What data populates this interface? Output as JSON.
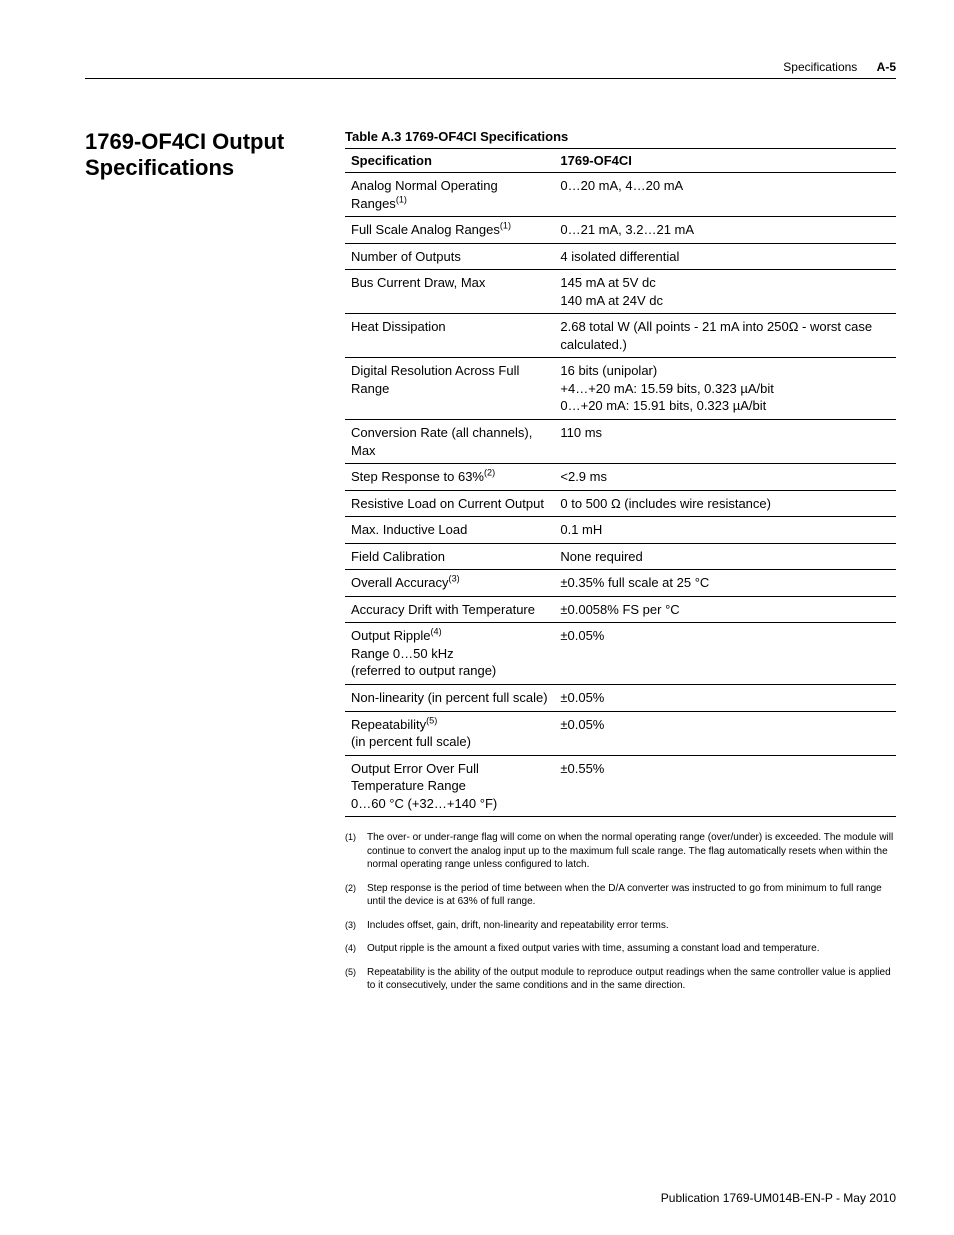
{
  "header": {
    "section": "Specifications",
    "page": "A-5"
  },
  "section_title_line1": "1769-OF4CI Output",
  "section_title_line2": "Specifications",
  "table_caption": "Table A.3 1769-OF4CI Specifications",
  "columns": {
    "spec": "Specification",
    "val": "1769-OF4CI"
  },
  "rows": [
    {
      "spec_html": "Analog Normal Operating Ranges<sup>(1)</sup>",
      "val": "0…20 mA, 4…20 mA"
    },
    {
      "spec_html": "Full Scale Analog Ranges<sup>(1)</sup>",
      "val": "0…21 mA, 3.2…21 mA"
    },
    {
      "spec_html": "Number of Outputs",
      "val": "4 isolated differential"
    },
    {
      "spec_html": "Bus Current Draw, Max",
      "val": "145 mA at 5V dc\n140 mA at 24V dc"
    },
    {
      "spec_html": "Heat Dissipation",
      "val": "2.68 total W (All points - 21 mA into 250Ω - worst case calculated.)"
    },
    {
      "spec_html": "Digital Resolution Across Full Range",
      "val": "16 bits (unipolar)\n+4…+20 mA: 15.59 bits, 0.323 µA/bit\n0…+20 mA: 15.91 bits, 0.323 µA/bit"
    },
    {
      "spec_html": "Conversion Rate (all channels), Max",
      "val": "110 ms"
    },
    {
      "spec_html": "Step Response to 63%<sup>(2)</sup>",
      "val": "<2.9 ms"
    },
    {
      "spec_html": "Resistive Load on Current Output",
      "val": "0 to 500 Ω (includes wire resistance)"
    },
    {
      "spec_html": "Max. Inductive Load",
      "val": "0.1 mH"
    },
    {
      "spec_html": "Field Calibration",
      "val": "None required"
    },
    {
      "spec_html": "Overall Accuracy<sup>(3)</sup>",
      "val": "±0.35% full scale at 25 °C"
    },
    {
      "spec_html": "Accuracy Drift with Temperature",
      "val": "±0.0058% FS per °C"
    },
    {
      "spec_html": "Output Ripple<sup>(4)</sup><br>Range 0…50 kHz<br>(referred to output range)",
      "val": "±0.05%"
    },
    {
      "spec_html": "Non-linearity (in percent full scale)",
      "val": "±0.05%"
    },
    {
      "spec_html": "Repeatability<sup>(5)</sup><br>(in percent full scale)",
      "val": "±0.05%"
    },
    {
      "spec_html": "Output Error Over Full Temperature Range<br>0…60 °C (+32…+140 °F)",
      "val": "±0.55%"
    }
  ],
  "footnotes": [
    {
      "num": "(1)",
      "text": "The over- or under-range flag will come on when the normal operating range (over/under) is exceeded. The module will continue to convert the analog input up to the maximum full scale range. The flag automatically resets when within the normal operating range unless configured to latch."
    },
    {
      "num": "(2)",
      "text": "Step response is the period of time between when the D/A converter was instructed to go from minimum to full range until the device is at 63% of full range."
    },
    {
      "num": "(3)",
      "text": "Includes offset, gain, drift, non-linearity and repeatability error terms."
    },
    {
      "num": "(4)",
      "text": "Output ripple is the amount a fixed output varies with time, assuming a constant load and temperature."
    },
    {
      "num": "(5)",
      "text": "Repeatability is the ability of the output module to reproduce output readings when the same controller value is applied to it consecutively, under the same conditions and in the same direction."
    }
  ],
  "footer": "Publication 1769-UM014B-EN-P - May 2010"
}
